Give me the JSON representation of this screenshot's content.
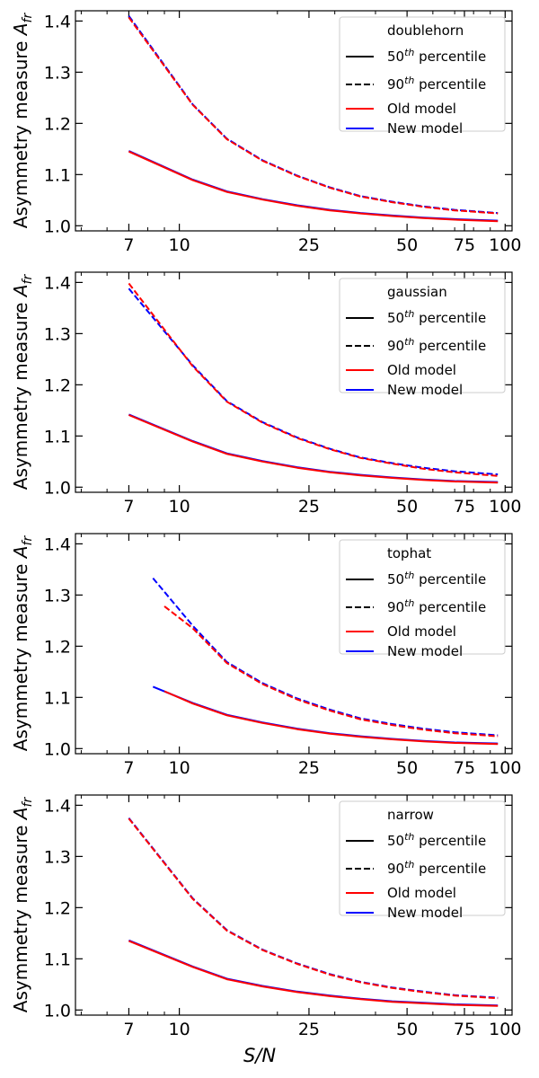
{
  "chart_data": [
    {
      "type": "line",
      "legend_title": "doublehorn",
      "ylabel_text": "Asymmetry measure ",
      "ylabel_sym": "A",
      "ylabel_sub": "fr",
      "xscale": "log",
      "xlim": [
        4.8,
        105
      ],
      "ylim": [
        0.99,
        1.42
      ],
      "xticks": [
        7,
        10,
        25,
        50,
        75,
        100
      ],
      "xtick_labels": [
        "7",
        "10",
        "25",
        "50",
        "75",
        "100"
      ],
      "yticks": [
        1.0,
        1.1,
        1.2,
        1.3,
        1.4
      ],
      "ytick_labels": [
        "1.0",
        "1.1",
        "1.2",
        "1.3",
        "1.4"
      ],
      "legend": {
        "placement": "upper right",
        "entries": [
          {
            "base": "50",
            "sup": "th",
            "rest": " percentile",
            "color": "#000000",
            "style": "solid"
          },
          {
            "base": "90",
            "sup": "th",
            "rest": " percentile",
            "color": "#000000",
            "style": "dashed"
          },
          {
            "base": "Old model",
            "sup": "",
            "rest": "",
            "color": "#ff0000",
            "style": "solid"
          },
          {
            "base": "New model",
            "sup": "",
            "rest": "",
            "color": "#0000ff",
            "style": "solid"
          }
        ]
      },
      "series": [
        {
          "model": "new",
          "stat": "p90",
          "color": "#0000ff",
          "style": "dashed",
          "x": [
            7,
            11,
            14,
            18,
            23,
            29,
            36,
            45,
            56,
            70,
            95
          ],
          "y": [
            1.41,
            1.237,
            1.17,
            1.128,
            1.098,
            1.075,
            1.058,
            1.047,
            1.038,
            1.031,
            1.025
          ]
        },
        {
          "model": "old",
          "stat": "p90",
          "color": "#ff0000",
          "style": "dashed",
          "x": [
            7,
            11,
            14,
            18,
            23,
            29,
            36,
            45,
            56,
            70,
            95
          ],
          "y": [
            1.407,
            1.236,
            1.169,
            1.127,
            1.097,
            1.074,
            1.057,
            1.046,
            1.037,
            1.03,
            1.024
          ]
        },
        {
          "model": "new",
          "stat": "p50",
          "color": "#0000ff",
          "style": "solid",
          "x": [
            7,
            11,
            14,
            18,
            23,
            29,
            36,
            45,
            56,
            70,
            95
          ],
          "y": [
            1.146,
            1.09,
            1.067,
            1.052,
            1.04,
            1.031,
            1.025,
            1.02,
            1.016,
            1.013,
            1.01
          ]
        },
        {
          "model": "old",
          "stat": "p50",
          "color": "#ff0000",
          "style": "solid",
          "x": [
            7,
            11,
            14,
            18,
            23,
            29,
            36,
            45,
            56,
            70,
            95
          ],
          "y": [
            1.145,
            1.089,
            1.066,
            1.051,
            1.039,
            1.03,
            1.024,
            1.019,
            1.015,
            1.012,
            1.009
          ]
        }
      ]
    },
    {
      "type": "line",
      "legend_title": "gaussian",
      "ylabel_text": "Asymmetry measure ",
      "ylabel_sym": "A",
      "ylabel_sub": "fr",
      "xscale": "log",
      "xlim": [
        4.8,
        105
      ],
      "ylim": [
        0.99,
        1.42
      ],
      "xticks": [
        7,
        10,
        25,
        50,
        75,
        100
      ],
      "xtick_labels": [
        "7",
        "10",
        "25",
        "50",
        "75",
        "100"
      ],
      "yticks": [
        1.0,
        1.1,
        1.2,
        1.3,
        1.4
      ],
      "ytick_labels": [
        "1.0",
        "1.1",
        "1.2",
        "1.3",
        "1.4"
      ],
      "legend": {
        "placement": "upper right",
        "entries": [
          {
            "base": "50",
            "sup": "th",
            "rest": " percentile",
            "color": "#000000",
            "style": "solid"
          },
          {
            "base": "90",
            "sup": "th",
            "rest": " percentile",
            "color": "#000000",
            "style": "dashed"
          },
          {
            "base": "Old model",
            "sup": "",
            "rest": "",
            "color": "#ff0000",
            "style": "solid"
          },
          {
            "base": "New model",
            "sup": "",
            "rest": "",
            "color": "#0000ff",
            "style": "solid"
          }
        ]
      },
      "series": [
        {
          "model": "new",
          "stat": "p90",
          "color": "#0000ff",
          "style": "dashed",
          "x": [
            7,
            11,
            14,
            18,
            23,
            29,
            36,
            45,
            56,
            70,
            95
          ],
          "y": [
            1.388,
            1.238,
            1.168,
            1.127,
            1.097,
            1.075,
            1.058,
            1.047,
            1.038,
            1.031,
            1.025
          ]
        },
        {
          "model": "old",
          "stat": "p90",
          "color": "#ff0000",
          "style": "dashed",
          "x": [
            7,
            11,
            14,
            18,
            23,
            29,
            36,
            45,
            56,
            70,
            95
          ],
          "y": [
            1.398,
            1.236,
            1.167,
            1.126,
            1.096,
            1.074,
            1.057,
            1.046,
            1.036,
            1.029,
            1.022
          ]
        },
        {
          "model": "new",
          "stat": "p50",
          "color": "#0000ff",
          "style": "solid",
          "x": [
            7,
            11,
            14,
            18,
            23,
            29,
            36,
            45,
            56,
            70,
            95
          ],
          "y": [
            1.142,
            1.09,
            1.066,
            1.051,
            1.039,
            1.03,
            1.024,
            1.019,
            1.015,
            1.012,
            1.01
          ]
        },
        {
          "model": "old",
          "stat": "p50",
          "color": "#ff0000",
          "style": "solid",
          "x": [
            7,
            11,
            14,
            18,
            23,
            29,
            36,
            45,
            56,
            70,
            95
          ],
          "y": [
            1.141,
            1.089,
            1.065,
            1.05,
            1.038,
            1.029,
            1.023,
            1.018,
            1.014,
            1.011,
            1.009
          ]
        }
      ]
    },
    {
      "type": "line",
      "legend_title": "tophat",
      "ylabel_text": "Asymmetry measure ",
      "ylabel_sym": "A",
      "ylabel_sub": "fr",
      "xscale": "log",
      "xlim": [
        4.8,
        105
      ],
      "ylim": [
        0.99,
        1.42
      ],
      "xticks": [
        7,
        10,
        25,
        50,
        75,
        100
      ],
      "xtick_labels": [
        "7",
        "10",
        "25",
        "50",
        "75",
        "100"
      ],
      "yticks": [
        1.0,
        1.1,
        1.2,
        1.3,
        1.4
      ],
      "ytick_labels": [
        "1.0",
        "1.1",
        "1.2",
        "1.3",
        "1.4"
      ],
      "legend": {
        "placement": "upper right",
        "entries": [
          {
            "base": "50",
            "sup": "th",
            "rest": " percentile",
            "color": "#000000",
            "style": "solid"
          },
          {
            "base": "90",
            "sup": "th",
            "rest": " percentile",
            "color": "#000000",
            "style": "dashed"
          },
          {
            "base": "Old model",
            "sup": "",
            "rest": "",
            "color": "#ff0000",
            "style": "solid"
          },
          {
            "base": "New model",
            "sup": "",
            "rest": "",
            "color": "#0000ff",
            "style": "solid"
          }
        ]
      },
      "series": [
        {
          "model": "new",
          "stat": "p90",
          "color": "#0000ff",
          "style": "dashed",
          "x": [
            8.3,
            11,
            14,
            18,
            23,
            29,
            36,
            45,
            56,
            70,
            95
          ],
          "y": [
            1.333,
            1.24,
            1.169,
            1.128,
            1.098,
            1.076,
            1.059,
            1.048,
            1.039,
            1.032,
            1.026
          ]
        },
        {
          "model": "old",
          "stat": "p90",
          "color": "#ff0000",
          "style": "dashed",
          "x": [
            9,
            11,
            14,
            18,
            23,
            29,
            36,
            45,
            56,
            70,
            95
          ],
          "y": [
            1.278,
            1.235,
            1.167,
            1.126,
            1.096,
            1.074,
            1.057,
            1.046,
            1.037,
            1.03,
            1.024
          ]
        },
        {
          "model": "new",
          "stat": "p50",
          "color": "#0000ff",
          "style": "solid",
          "x": [
            8.3,
            11,
            14,
            18,
            23,
            29,
            36,
            45,
            56,
            70,
            95
          ],
          "y": [
            1.121,
            1.089,
            1.066,
            1.051,
            1.039,
            1.03,
            1.024,
            1.019,
            1.015,
            1.012,
            1.01
          ]
        },
        {
          "model": "old",
          "stat": "p50",
          "color": "#ff0000",
          "style": "solid",
          "x": [
            9,
            11,
            14,
            18,
            23,
            29,
            36,
            45,
            56,
            70,
            95
          ],
          "y": [
            1.112,
            1.088,
            1.065,
            1.05,
            1.038,
            1.029,
            1.023,
            1.018,
            1.014,
            1.011,
            1.009
          ]
        }
      ]
    },
    {
      "type": "line",
      "legend_title": "narrow",
      "ylabel_text": "Asymmetry measure ",
      "ylabel_sym": "A",
      "ylabel_sub": "fr",
      "xlabel_sym": "S/N",
      "xscale": "log",
      "xlim": [
        4.8,
        105
      ],
      "ylim": [
        0.99,
        1.42
      ],
      "xticks": [
        7,
        10,
        25,
        50,
        75,
        100
      ],
      "xtick_labels": [
        "7",
        "10",
        "25",
        "50",
        "75",
        "100"
      ],
      "yticks": [
        1.0,
        1.1,
        1.2,
        1.3,
        1.4
      ],
      "ytick_labels": [
        "1.0",
        "1.1",
        "1.2",
        "1.3",
        "1.4"
      ],
      "legend": {
        "placement": "upper right",
        "entries": [
          {
            "base": "50",
            "sup": "th",
            "rest": " percentile",
            "color": "#000000",
            "style": "solid"
          },
          {
            "base": "90",
            "sup": "th",
            "rest": " percentile",
            "color": "#000000",
            "style": "dashed"
          },
          {
            "base": "Old model",
            "sup": "",
            "rest": "",
            "color": "#ff0000",
            "style": "solid"
          },
          {
            "base": "New model",
            "sup": "",
            "rest": "",
            "color": "#0000ff",
            "style": "solid"
          }
        ]
      },
      "series": [
        {
          "model": "new",
          "stat": "p90",
          "color": "#0000ff",
          "style": "dashed",
          "x": [
            7,
            11,
            14,
            18,
            23,
            29,
            36,
            45,
            56,
            70,
            95
          ],
          "y": [
            1.375,
            1.218,
            1.156,
            1.118,
            1.091,
            1.07,
            1.055,
            1.044,
            1.036,
            1.029,
            1.024
          ]
        },
        {
          "model": "old",
          "stat": "p90",
          "color": "#ff0000",
          "style": "dashed",
          "x": [
            7,
            11,
            14,
            18,
            23,
            29,
            36,
            45,
            56,
            70,
            95
          ],
          "y": [
            1.374,
            1.217,
            1.155,
            1.117,
            1.09,
            1.069,
            1.054,
            1.043,
            1.035,
            1.028,
            1.023
          ]
        },
        {
          "model": "new",
          "stat": "p50",
          "color": "#0000ff",
          "style": "solid",
          "x": [
            7,
            11,
            14,
            18,
            23,
            29,
            36,
            45,
            56,
            70,
            95
          ],
          "y": [
            1.136,
            1.085,
            1.061,
            1.047,
            1.036,
            1.028,
            1.022,
            1.017,
            1.014,
            1.011,
            1.009
          ]
        },
        {
          "model": "old",
          "stat": "p50",
          "color": "#ff0000",
          "style": "solid",
          "x": [
            7,
            11,
            14,
            18,
            23,
            29,
            36,
            45,
            56,
            70,
            95
          ],
          "y": [
            1.135,
            1.084,
            1.06,
            1.046,
            1.035,
            1.027,
            1.021,
            1.016,
            1.013,
            1.01,
            1.008
          ]
        }
      ]
    }
  ]
}
